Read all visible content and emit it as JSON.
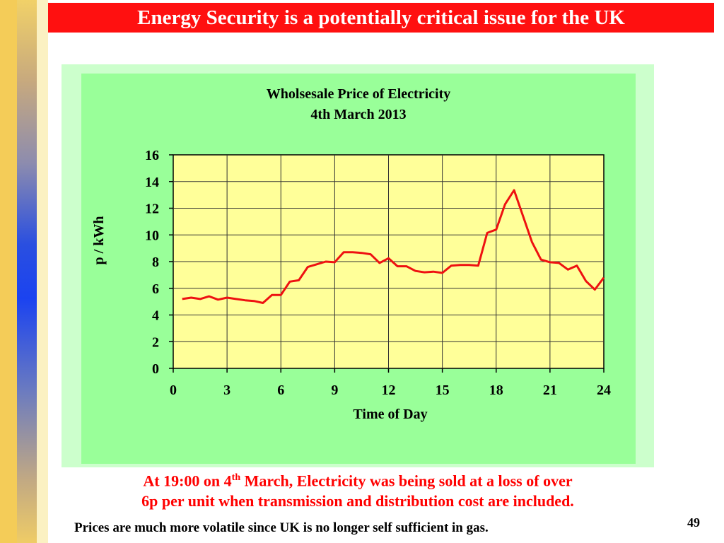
{
  "slide": {
    "title": "Energy Security is a potentially critical issue for the UK",
    "caption_part1": "At 19:00 on 4",
    "caption_sup": "th",
    "caption_part2": " March, Electricity was being sold at a loss of over",
    "caption_line2": "6p per unit when transmission and distribution cost are included.",
    "note": "Prices are much more volatile since UK is no longer self sufficient in gas.",
    "page_number": "49"
  },
  "chart_data": {
    "type": "line",
    "title": "Wholsesale Price of Electricity",
    "subtitle": "4th March 2013",
    "xlabel": "Time of Day",
    "ylabel": "p / kWh",
    "xlim": [
      0,
      24
    ],
    "ylim": [
      0,
      16
    ],
    "xticks": [
      0,
      3,
      6,
      9,
      12,
      15,
      18,
      21,
      24
    ],
    "yticks": [
      0,
      2,
      4,
      6,
      8,
      10,
      12,
      14,
      16
    ],
    "grid": true,
    "line_color": "#ee1111",
    "plot_bg": "#ffff99",
    "x": [
      0.5,
      1,
      1.5,
      2,
      2.5,
      3,
      3.5,
      4,
      4.5,
      5,
      5.5,
      6,
      6.5,
      7,
      7.5,
      8,
      8.5,
      9,
      9.5,
      10,
      10.5,
      11,
      11.5,
      12,
      12.5,
      13,
      13.5,
      14,
      14.5,
      15,
      15.5,
      16,
      16.5,
      17,
      17.5,
      18,
      18.5,
      19,
      19.5,
      20,
      20.5,
      21,
      21.5,
      22,
      22.5,
      23,
      23.5,
      24
    ],
    "values": [
      5.2,
      5.3,
      5.2,
      5.4,
      5.15,
      5.3,
      5.2,
      5.1,
      5.05,
      4.9,
      5.5,
      5.5,
      6.5,
      6.6,
      7.6,
      7.8,
      8.0,
      7.95,
      8.7,
      8.7,
      8.65,
      8.55,
      7.9,
      8.25,
      7.65,
      7.65,
      7.3,
      7.2,
      7.25,
      7.15,
      7.7,
      7.75,
      7.75,
      7.7,
      10.15,
      10.4,
      12.3,
      13.35,
      11.4,
      9.45,
      8.15,
      7.95,
      7.9,
      7.4,
      7.7,
      6.55,
      5.9,
      6.8
    ]
  }
}
